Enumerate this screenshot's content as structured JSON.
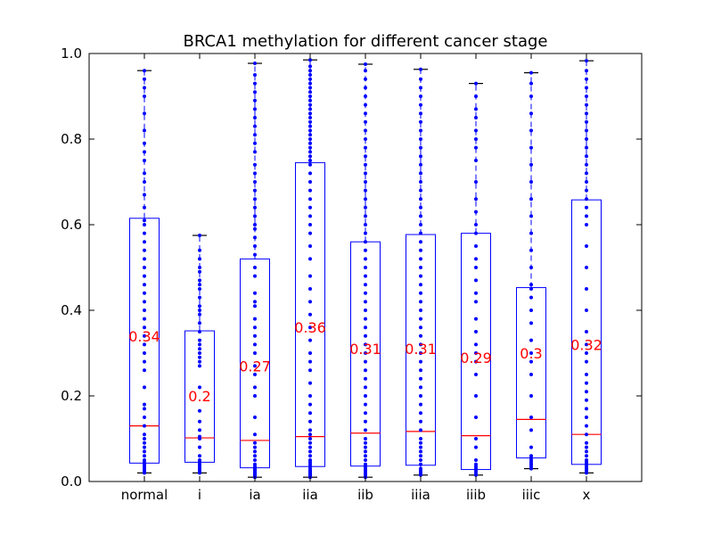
{
  "chart_data": {
    "type": "box",
    "title": "BRCA1 methylation for different cancer stage",
    "xlabel": "",
    "ylabel": "",
    "ylim": [
      0.0,
      1.0
    ],
    "yticks": [
      "0.0",
      "0.2",
      "0.4",
      "0.6",
      "0.8",
      "1.0"
    ],
    "grid": false,
    "colors": {
      "box": "#0000ff",
      "median": "#ff0000",
      "points": "#0000ff",
      "mean_label": "#ff0000"
    },
    "categories": [
      "normal",
      "i",
      "ia",
      "iia",
      "iib",
      "iiia",
      "iiib",
      "iiic",
      "x"
    ],
    "boxes": [
      {
        "category": "normal",
        "whisker_low": 0.02,
        "q1": 0.043,
        "median": 0.13,
        "q3": 0.615,
        "whisker_high": 0.96,
        "mean_label": "0.34",
        "mean": 0.34
      },
      {
        "category": "i",
        "whisker_low": 0.02,
        "q1": 0.045,
        "median": 0.102,
        "q3": 0.352,
        "whisker_high": 0.575,
        "mean_label": "0.2",
        "mean": 0.2
      },
      {
        "category": "ia",
        "whisker_low": 0.01,
        "q1": 0.032,
        "median": 0.096,
        "q3": 0.52,
        "whisker_high": 0.977,
        "mean_label": "0.27",
        "mean": 0.27
      },
      {
        "category": "iia",
        "whisker_low": 0.01,
        "q1": 0.035,
        "median": 0.105,
        "q3": 0.745,
        "whisker_high": 0.985,
        "mean_label": "0.36",
        "mean": 0.36
      },
      {
        "category": "iib",
        "whisker_low": 0.01,
        "q1": 0.036,
        "median": 0.113,
        "q3": 0.56,
        "whisker_high": 0.975,
        "mean_label": "0.31",
        "mean": 0.31
      },
      {
        "category": "iiia",
        "whisker_low": 0.015,
        "q1": 0.038,
        "median": 0.117,
        "q3": 0.577,
        "whisker_high": 0.963,
        "mean_label": "0.31",
        "mean": 0.31
      },
      {
        "category": "iiib",
        "whisker_low": 0.015,
        "q1": 0.028,
        "median": 0.107,
        "q3": 0.58,
        "whisker_high": 0.93,
        "mean_label": "0.29",
        "mean": 0.29
      },
      {
        "category": "iiic",
        "whisker_low": 0.03,
        "q1": 0.055,
        "median": 0.145,
        "q3": 0.453,
        "whisker_high": 0.955,
        "mean_label": "0.3",
        "mean": 0.3
      },
      {
        "category": "x",
        "whisker_low": 0.02,
        "q1": 0.04,
        "median": 0.11,
        "q3": 0.658,
        "whisker_high": 0.983,
        "mean_label": "0.32",
        "mean": 0.32
      }
    ],
    "points": [
      [
        0.02,
        0.025,
        0.03,
        0.035,
        0.04,
        0.045,
        0.05,
        0.06,
        0.07,
        0.08,
        0.09,
        0.1,
        0.11,
        0.13,
        0.15,
        0.17,
        0.18,
        0.22,
        0.26,
        0.28,
        0.3,
        0.32,
        0.34,
        0.36,
        0.38,
        0.4,
        0.42,
        0.44,
        0.46,
        0.48,
        0.5,
        0.52,
        0.54,
        0.56,
        0.58,
        0.6,
        0.61,
        0.64,
        0.67,
        0.7,
        0.72,
        0.75,
        0.77,
        0.79,
        0.82,
        0.86,
        0.9,
        0.92,
        0.94,
        0.96
      ],
      [
        0.02,
        0.025,
        0.03,
        0.035,
        0.04,
        0.045,
        0.05,
        0.06,
        0.08,
        0.1,
        0.105,
        0.12,
        0.14,
        0.165,
        0.22,
        0.27,
        0.28,
        0.29,
        0.3,
        0.31,
        0.32,
        0.33,
        0.35,
        0.37,
        0.39,
        0.4,
        0.41,
        0.43,
        0.45,
        0.46,
        0.47,
        0.49,
        0.5,
        0.52,
        0.54,
        0.575
      ],
      [
        0.01,
        0.012,
        0.015,
        0.018,
        0.02,
        0.022,
        0.025,
        0.028,
        0.03,
        0.035,
        0.04,
        0.05,
        0.06,
        0.07,
        0.08,
        0.09,
        0.11,
        0.15,
        0.2,
        0.22,
        0.25,
        0.27,
        0.3,
        0.32,
        0.34,
        0.36,
        0.38,
        0.41,
        0.42,
        0.44,
        0.48,
        0.5,
        0.53,
        0.55,
        0.57,
        0.59,
        0.6,
        0.62,
        0.64,
        0.66,
        0.68,
        0.7,
        0.72,
        0.74,
        0.77,
        0.79,
        0.81,
        0.83,
        0.85,
        0.87,
        0.89,
        0.91,
        0.93,
        0.95,
        0.977
      ],
      [
        0.01,
        0.012,
        0.014,
        0.016,
        0.018,
        0.02,
        0.022,
        0.024,
        0.026,
        0.03,
        0.035,
        0.04,
        0.045,
        0.05,
        0.06,
        0.07,
        0.08,
        0.09,
        0.1,
        0.11,
        0.12,
        0.14,
        0.16,
        0.18,
        0.2,
        0.23,
        0.26,
        0.28,
        0.3,
        0.33,
        0.36,
        0.39,
        0.42,
        0.45,
        0.48,
        0.52,
        0.55,
        0.58,
        0.6,
        0.62,
        0.64,
        0.66,
        0.68,
        0.7,
        0.72,
        0.74,
        0.75,
        0.76,
        0.77,
        0.78,
        0.79,
        0.8,
        0.81,
        0.82,
        0.83,
        0.84,
        0.85,
        0.86,
        0.87,
        0.88,
        0.89,
        0.9,
        0.91,
        0.92,
        0.93,
        0.94,
        0.95,
        0.96,
        0.97,
        0.985
      ],
      [
        0.01,
        0.015,
        0.02,
        0.025,
        0.03,
        0.035,
        0.04,
        0.05,
        0.06,
        0.07,
        0.08,
        0.09,
        0.1,
        0.12,
        0.14,
        0.16,
        0.18,
        0.2,
        0.22,
        0.24,
        0.26,
        0.28,
        0.3,
        0.32,
        0.34,
        0.36,
        0.38,
        0.4,
        0.42,
        0.44,
        0.46,
        0.48,
        0.5,
        0.52,
        0.54,
        0.56,
        0.58,
        0.6,
        0.62,
        0.64,
        0.66,
        0.68,
        0.7,
        0.72,
        0.74,
        0.76,
        0.78,
        0.8,
        0.82,
        0.84,
        0.86,
        0.88,
        0.9,
        0.92,
        0.94,
        0.96,
        0.975
      ],
      [
        0.015,
        0.02,
        0.025,
        0.03,
        0.04,
        0.05,
        0.06,
        0.07,
        0.08,
        0.09,
        0.1,
        0.12,
        0.14,
        0.16,
        0.18,
        0.2,
        0.22,
        0.24,
        0.26,
        0.28,
        0.3,
        0.32,
        0.34,
        0.36,
        0.38,
        0.4,
        0.42,
        0.44,
        0.46,
        0.48,
        0.5,
        0.52,
        0.54,
        0.56,
        0.58,
        0.6,
        0.62,
        0.64,
        0.66,
        0.68,
        0.7,
        0.72,
        0.74,
        0.76,
        0.78,
        0.8,
        0.82,
        0.84,
        0.86,
        0.88,
        0.9,
        0.92,
        0.94,
        0.963
      ],
      [
        0.015,
        0.02,
        0.025,
        0.03,
        0.035,
        0.04,
        0.05,
        0.08,
        0.1,
        0.15,
        0.2,
        0.25,
        0.28,
        0.3,
        0.32,
        0.35,
        0.38,
        0.42,
        0.44,
        0.47,
        0.5,
        0.52,
        0.55,
        0.58,
        0.6,
        0.63,
        0.66,
        0.7,
        0.75,
        0.78,
        0.8,
        0.82,
        0.85,
        0.87,
        0.9,
        0.93
      ],
      [
        0.03,
        0.035,
        0.04,
        0.045,
        0.05,
        0.055,
        0.06,
        0.08,
        0.12,
        0.15,
        0.2,
        0.25,
        0.28,
        0.3,
        0.33,
        0.37,
        0.4,
        0.43,
        0.45,
        0.46,
        0.5,
        0.54,
        0.58,
        0.62,
        0.66,
        0.7,
        0.74,
        0.78,
        0.82,
        0.86,
        0.9,
        0.93,
        0.955
      ],
      [
        0.02,
        0.025,
        0.03,
        0.035,
        0.04,
        0.045,
        0.05,
        0.06,
        0.07,
        0.08,
        0.09,
        0.11,
        0.13,
        0.15,
        0.17,
        0.19,
        0.21,
        0.23,
        0.25,
        0.28,
        0.3,
        0.32,
        0.35,
        0.4,
        0.45,
        0.5,
        0.55,
        0.6,
        0.62,
        0.64,
        0.66,
        0.68,
        0.7,
        0.72,
        0.74,
        0.76,
        0.78,
        0.8,
        0.82,
        0.84,
        0.86,
        0.88,
        0.9,
        0.92,
        0.94,
        0.96,
        0.983
      ]
    ]
  }
}
